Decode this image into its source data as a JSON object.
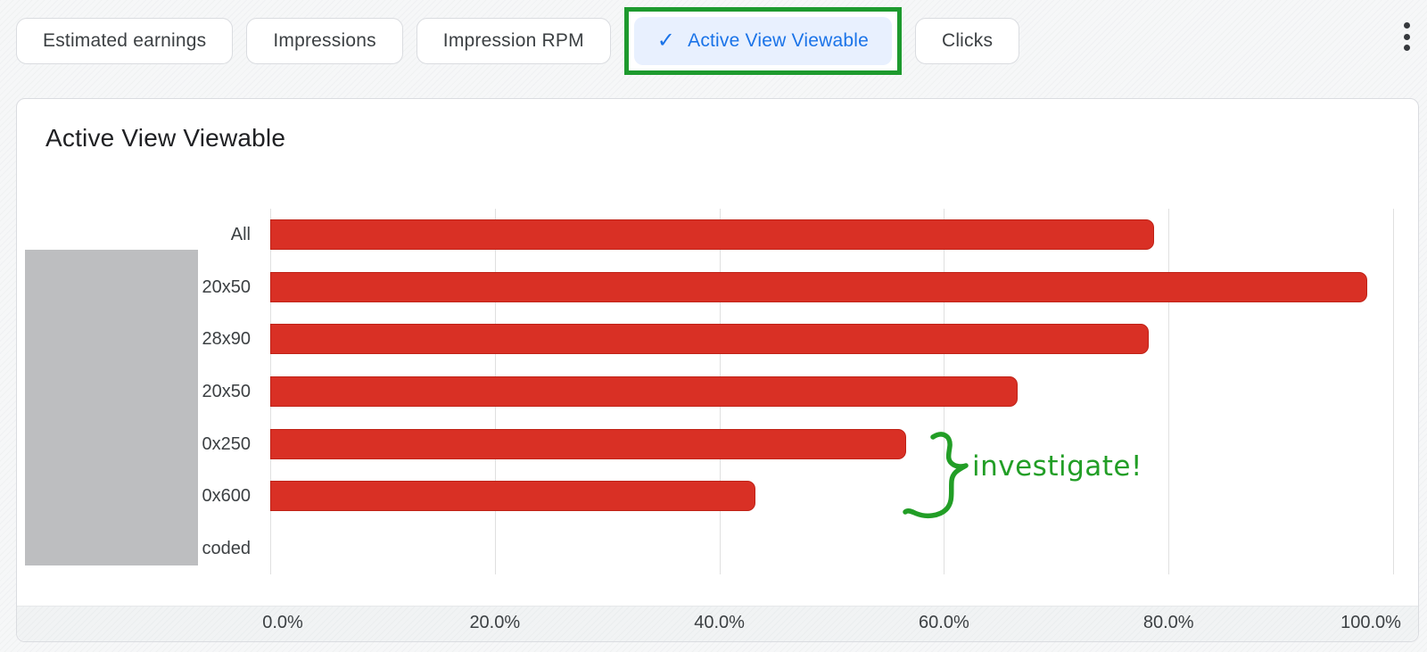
{
  "tabs": {
    "items": [
      {
        "label": "Estimated earnings",
        "selected": false
      },
      {
        "label": "Impressions",
        "selected": false
      },
      {
        "label": "Impression RPM",
        "selected": false
      },
      {
        "label": "Active View Viewable",
        "selected": true
      },
      {
        "label": "Clicks",
        "selected": false
      }
    ],
    "check_icon": "✓",
    "selected_text_color": "#1a73e8",
    "selected_bg_color": "#e8f0fe",
    "highlight_box_color": "#1d9a2e",
    "more_menu_icon": "kebab-menu"
  },
  "card": {
    "title": "Active View Viewable"
  },
  "chart_data": {
    "type": "bar",
    "orientation": "horizontal",
    "title": "Active View Viewable",
    "categories": [
      "All",
      "20x50",
      "28x90",
      "20x50",
      "0x250",
      "0x600",
      "coded"
    ],
    "values": [
      78.7,
      97.7,
      78.2,
      66.6,
      56.6,
      43.2,
      null
    ],
    "unit": "%",
    "x_ticks": [
      "0.0%",
      "20.0%",
      "40.0%",
      "60.0%",
      "80.0%",
      "100.0%"
    ],
    "xlim": [
      0,
      100
    ],
    "grid": true,
    "legend": "none",
    "bar_color": "#d93025",
    "bar_border_color": "#bf2217",
    "note_overlay": "left portion of y-axis labels hidden by gray redaction box"
  },
  "redaction": {
    "color": "#bdbec0"
  },
  "annotation": {
    "text": "investigate!",
    "brace_glyph": "}",
    "color": "#229e26"
  }
}
